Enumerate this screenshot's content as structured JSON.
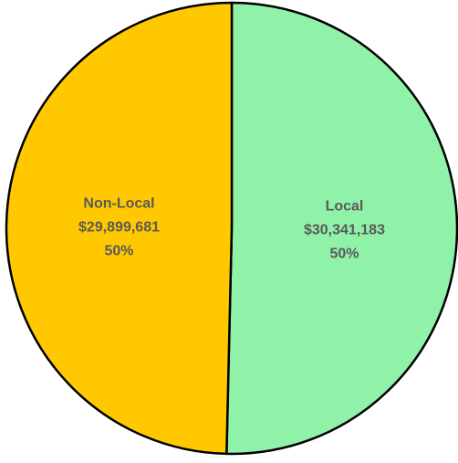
{
  "chart_data": {
    "type": "pie",
    "slices": [
      {
        "label": "Local",
        "value": 30341183,
        "value_label": "$30,341,183",
        "percent_label": "50%",
        "color": "#90F2A8"
      },
      {
        "label": "Non-Local",
        "value": 29899681,
        "value_label": "$29,899,681",
        "percent_label": "50%",
        "color": "#FFC800"
      }
    ],
    "start_angle": "12 o'clock",
    "direction": "clockwise",
    "border_color": "#000000",
    "label_color": "#595959",
    "legend": "none"
  }
}
